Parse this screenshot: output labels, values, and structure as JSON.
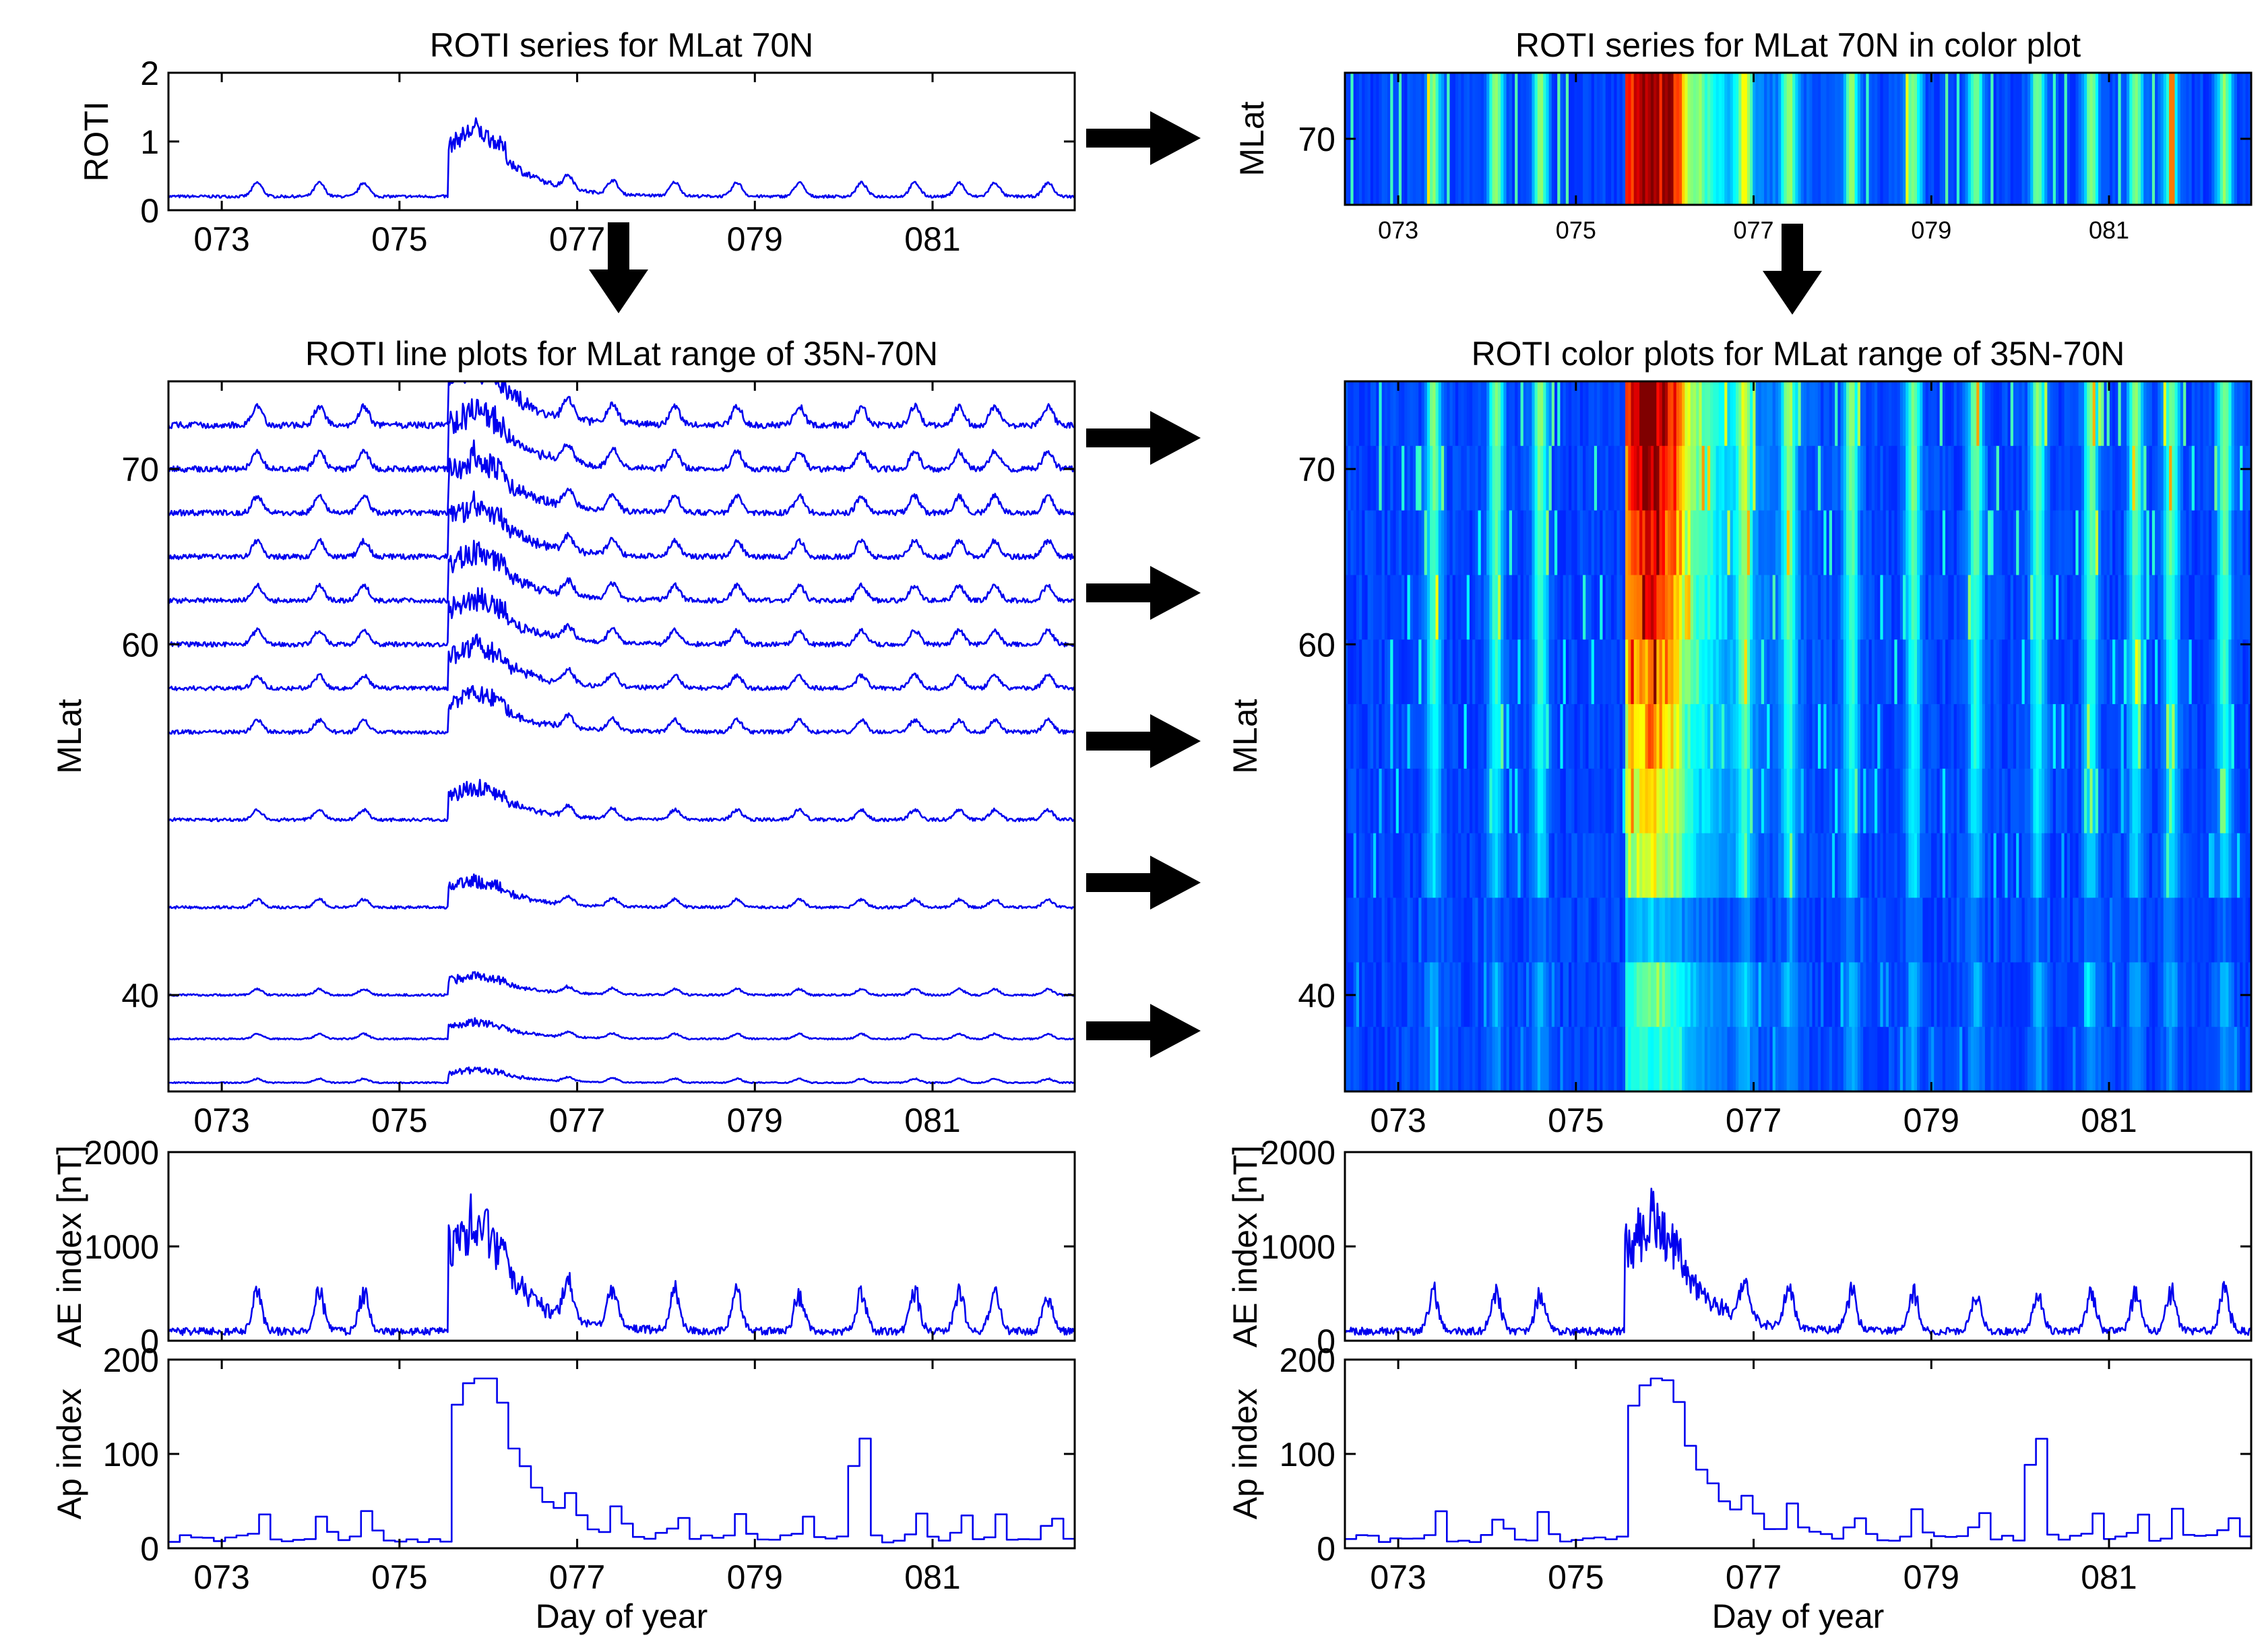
{
  "chart_data": [
    {
      "id": "roti70-line",
      "type": "line",
      "title": "ROTI series for MLat 70N",
      "xlabel": "",
      "ylabel": "ROTI",
      "xlim": [
        72.4,
        82.6
      ],
      "ylim": [
        0,
        2
      ],
      "xticks": [
        "073",
        "075",
        "077",
        "079",
        "081"
      ],
      "xtick_values": [
        73,
        75,
        77,
        79,
        81
      ],
      "yticks": [
        "0",
        "1",
        "2"
      ],
      "ytick_values": [
        0,
        1,
        2
      ],
      "series": [
        {
          "name": "70N",
          "baseline": 0.2,
          "storm_peak": 1.2
        }
      ]
    },
    {
      "id": "roti70-color",
      "type": "heatmap",
      "title": "ROTI series for MLat 70N in color plot",
      "ylabel": "MLat",
      "xlim": [
        72.4,
        82.6
      ],
      "xticks": [
        "073",
        "075",
        "077",
        "079",
        "081"
      ],
      "xtick_values": [
        73,
        75,
        77,
        79,
        81
      ],
      "yticks": [
        "70"
      ],
      "ytick_values": [
        70
      ],
      "colormap": "jet"
    },
    {
      "id": "roti-lines",
      "type": "line",
      "title": "ROTI line plots for MLat range of 35N-70N",
      "ylabel": "MLat",
      "xlim": [
        72.4,
        82.6
      ],
      "ylim": [
        34.5,
        75
      ],
      "xticks": [
        "073",
        "075",
        "077",
        "079",
        "081"
      ],
      "xtick_values": [
        73,
        75,
        77,
        79,
        81
      ],
      "yticks": [
        "40",
        "60",
        "70"
      ],
      "ytick_values": [
        40,
        60,
        70
      ],
      "latitudes": [
        35,
        37.5,
        40,
        45,
        50,
        55,
        57.5,
        60,
        62.5,
        65,
        67.5,
        70,
        72.5
      ]
    },
    {
      "id": "roti-colors",
      "type": "heatmap",
      "title": "ROTI color plots for MLat range of 35N-70N",
      "ylabel": "MLat",
      "xlim": [
        72.4,
        82.6
      ],
      "ylim": [
        34.5,
        75
      ],
      "xticks": [
        "073",
        "075",
        "077",
        "079",
        "081"
      ],
      "xtick_values": [
        73,
        75,
        77,
        79,
        81
      ],
      "yticks": [
        "40",
        "60",
        "70"
      ],
      "ytick_values": [
        40,
        60,
        70
      ],
      "colormap": "jet"
    },
    {
      "id": "ae-left",
      "type": "line",
      "ylabel": "AE index [nT]",
      "xlim": [
        72.4,
        82.6
      ],
      "ylim": [
        0,
        2000
      ],
      "yticks": [
        "0",
        "1000",
        "2000"
      ],
      "ytick_values": [
        0,
        1000,
        2000
      ],
      "series": [
        {
          "name": "AE",
          "peak": 1600
        }
      ]
    },
    {
      "id": "ap-left",
      "type": "line",
      "ylabel": "Ap index",
      "xlabel": "Day of year",
      "xlim": [
        72.4,
        82.6
      ],
      "ylim": [
        0,
        200
      ],
      "xticks": [
        "073",
        "075",
        "077",
        "079",
        "081"
      ],
      "xtick_values": [
        73,
        75,
        77,
        79,
        81
      ],
      "yticks": [
        "0",
        "100",
        "200"
      ],
      "ytick_values": [
        0,
        100,
        200
      ],
      "series": [
        {
          "name": "Ap",
          "peak": 180
        }
      ]
    },
    {
      "id": "ae-right",
      "type": "line",
      "ylabel": "AE index [nT]",
      "xlim": [
        72.4,
        82.6
      ],
      "ylim": [
        0,
        2000
      ],
      "yticks": [
        "0",
        "1000",
        "2000"
      ],
      "ytick_values": [
        0,
        1000,
        2000
      ],
      "series": [
        {
          "name": "AE",
          "peak": 1600
        }
      ]
    },
    {
      "id": "ap-right",
      "type": "line",
      "ylabel": "Ap index",
      "xlabel": "Day of year",
      "xlim": [
        72.4,
        82.6
      ],
      "ylim": [
        0,
        200
      ],
      "xticks": [
        "073",
        "075",
        "077",
        "079",
        "081"
      ],
      "xtick_values": [
        73,
        75,
        77,
        79,
        81
      ],
      "yticks": [
        "0",
        "100",
        "200"
      ],
      "ytick_values": [
        0,
        100,
        200
      ],
      "series": [
        {
          "name": "Ap",
          "peak": 180
        }
      ]
    }
  ]
}
